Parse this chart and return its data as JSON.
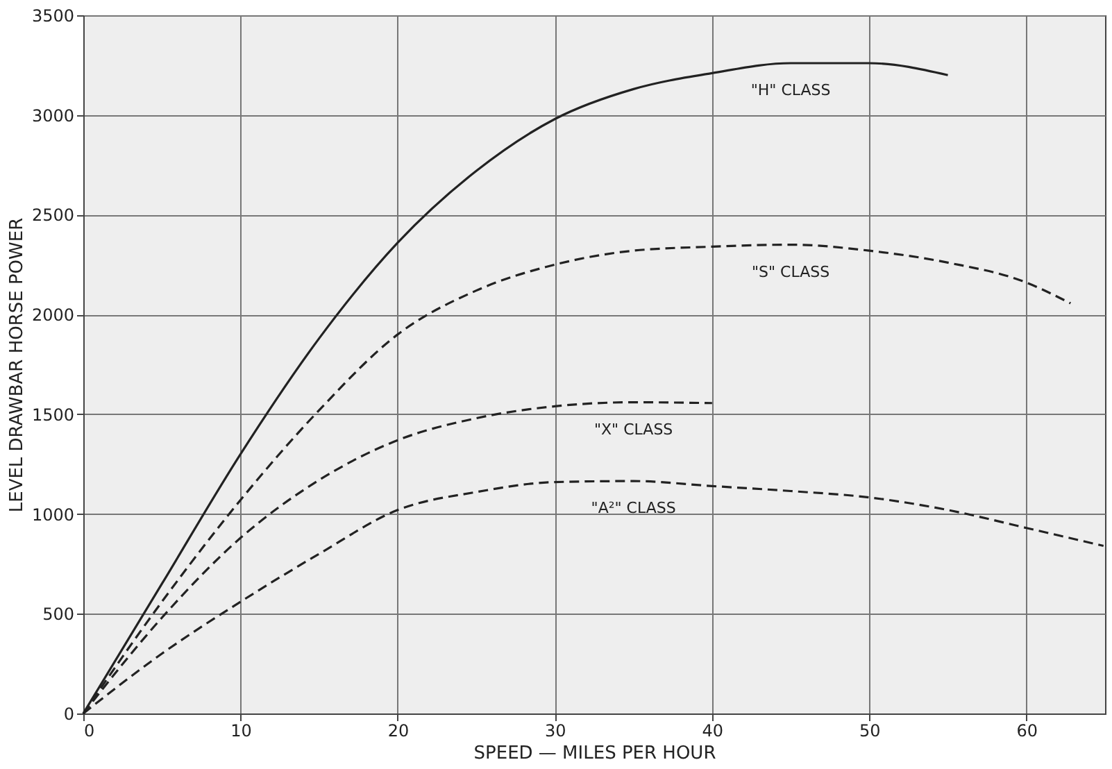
{
  "chart_data": {
    "type": "line",
    "xlabel": "SPEED — MILES PER HOUR",
    "ylabel": "LEVEL DRAWBAR HORSE POWER",
    "xlim": [
      0,
      65
    ],
    "xticks": [
      0,
      10,
      20,
      30,
      40,
      50,
      60
    ],
    "ylim": [
      0,
      3500
    ],
    "yticks": [
      0,
      500,
      1000,
      1500,
      2000,
      2500,
      3000,
      3500
    ],
    "grid": true,
    "marker": "none",
    "series": [
      {
        "name": "\"H\" CLASS",
        "color": "#222222",
        "line_style": "solid",
        "x": [
          0,
          5,
          10,
          15,
          20,
          25,
          30,
          35,
          40,
          45,
          50,
          55
        ],
        "values": [
          0,
          650,
          1300,
          1880,
          2360,
          2720,
          2980,
          3130,
          3210,
          3260,
          3260,
          3200
        ]
      },
      {
        "name": "\"S\" CLASS",
        "color": "#222222",
        "line_style": "dashed",
        "x": [
          0,
          5,
          10,
          15,
          20,
          25,
          30,
          35,
          40,
          45,
          50,
          55,
          60,
          62.8
        ],
        "values": [
          0,
          560,
          1070,
          1520,
          1900,
          2120,
          2250,
          2320,
          2340,
          2350,
          2320,
          2260,
          2160,
          2056
        ]
      },
      {
        "name": "\"X\" CLASS",
        "color": "#222222",
        "line_style": "dashed",
        "x": [
          0,
          5,
          10,
          15,
          20,
          25,
          30,
          35,
          40
        ],
        "values": [
          0,
          480,
          880,
          1170,
          1370,
          1480,
          1540,
          1560,
          1556
        ]
      },
      {
        "name": "\"A²\" CLASS",
        "color": "#222222",
        "line_style": "dashed",
        "x": [
          0,
          5,
          10,
          15,
          20,
          25,
          30,
          35,
          40,
          45,
          50,
          55,
          60,
          64.9
        ],
        "values": [
          0,
          300,
          560,
          800,
          1020,
          1110,
          1160,
          1165,
          1140,
          1115,
          1083,
          1020,
          930,
          840
        ]
      }
    ]
  }
}
